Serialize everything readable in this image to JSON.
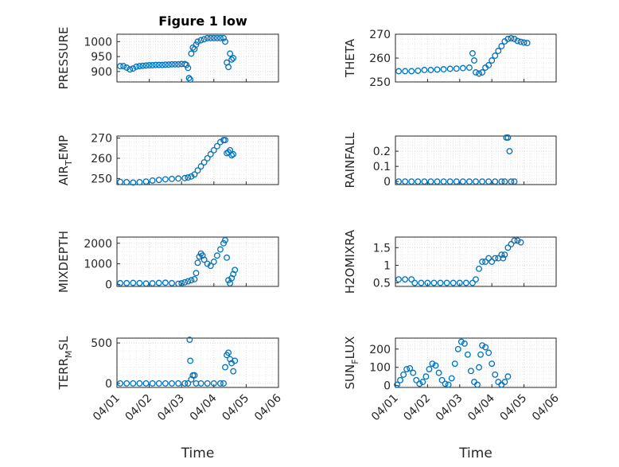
{
  "figure_title": "Figure 1 low",
  "marker_color": "#0072bd",
  "x_ticks": [
    "04/01",
    "04/02",
    "04/03",
    "04/04",
    "04/05",
    "04/06"
  ],
  "x_label": "Time",
  "chart_data": [
    {
      "type": "scatter",
      "name": "pressure",
      "ylabel": "PRESSURE",
      "yticks": [
        900,
        950,
        1000
      ],
      "ylim": [
        865,
        1025
      ],
      "xlim": [
        0,
        5
      ],
      "grid": "major+minor",
      "marker": "circle",
      "title": "Figure 1 low",
      "points": [
        [
          0.1,
          918
        ],
        [
          0.2,
          918
        ],
        [
          0.3,
          913
        ],
        [
          0.4,
          907
        ],
        [
          0.5,
          910
        ],
        [
          0.6,
          916
        ],
        [
          0.7,
          918
        ],
        [
          0.8,
          919
        ],
        [
          0.9,
          920
        ],
        [
          1.0,
          921
        ],
        [
          1.1,
          921
        ],
        [
          1.2,
          922
        ],
        [
          1.3,
          922
        ],
        [
          1.4,
          922
        ],
        [
          1.5,
          923
        ],
        [
          1.6,
          923
        ],
        [
          1.7,
          924
        ],
        [
          1.8,
          924
        ],
        [
          1.9,
          924
        ],
        [
          2.0,
          925
        ],
        [
          2.1,
          925
        ],
        [
          2.15,
          922
        ],
        [
          2.2,
          912
        ],
        [
          2.23,
          878
        ],
        [
          2.27,
          873
        ],
        [
          2.3,
          960
        ],
        [
          2.35,
          980
        ],
        [
          2.4,
          975
        ],
        [
          2.45,
          990
        ],
        [
          2.5,
          1000
        ],
        [
          2.6,
          1005
        ],
        [
          2.7,
          1008
        ],
        [
          2.8,
          1012
        ],
        [
          2.9,
          1012
        ],
        [
          3.0,
          1012
        ],
        [
          3.1,
          1012
        ],
        [
          3.2,
          1012
        ],
        [
          3.3,
          1012
        ],
        [
          3.35,
          1000
        ],
        [
          3.4,
          930
        ],
        [
          3.45,
          915
        ],
        [
          3.5,
          960
        ],
        [
          3.55,
          940
        ],
        [
          3.6,
          945
        ]
      ]
    },
    {
      "type": "scatter",
      "name": "theta",
      "ylabel": "THETA",
      "yticks": [
        250,
        260,
        270
      ],
      "ylim": [
        250,
        270
      ],
      "xlim": [
        0,
        5
      ],
      "grid": "major+minor",
      "marker": "circle",
      "points": [
        [
          0.1,
          254.5
        ],
        [
          0.3,
          254.5
        ],
        [
          0.5,
          254.5
        ],
        [
          0.7,
          254.7
        ],
        [
          0.9,
          255
        ],
        [
          1.1,
          255
        ],
        [
          1.3,
          255.2
        ],
        [
          1.5,
          255.3
        ],
        [
          1.7,
          255.5
        ],
        [
          1.9,
          255.6
        ],
        [
          2.1,
          255.8
        ],
        [
          2.3,
          256
        ],
        [
          2.4,
          262
        ],
        [
          2.45,
          259
        ],
        [
          2.5,
          254
        ],
        [
          2.6,
          253.5
        ],
        [
          2.7,
          254
        ],
        [
          2.8,
          256
        ],
        [
          2.9,
          257
        ],
        [
          3.0,
          259
        ],
        [
          3.1,
          261
        ],
        [
          3.2,
          263
        ],
        [
          3.3,
          265
        ],
        [
          3.4,
          267
        ],
        [
          3.5,
          268
        ],
        [
          3.6,
          268.3
        ],
        [
          3.7,
          268
        ],
        [
          3.8,
          267.2
        ],
        [
          3.9,
          266.8
        ],
        [
          4.0,
          266.5
        ],
        [
          4.1,
          266.3
        ]
      ]
    },
    {
      "type": "scatter",
      "name": "air_temp",
      "ylabel": "AIR_TEMP",
      "yticks": [
        250,
        260,
        270
      ],
      "ylim": [
        247,
        271
      ],
      "xlim": [
        0,
        5
      ],
      "grid": "major+minor",
      "marker": "circle",
      "points": [
        [
          0.1,
          248.3
        ],
        [
          0.3,
          248.2
        ],
        [
          0.5,
          248
        ],
        [
          0.7,
          248.2
        ],
        [
          0.9,
          248.5
        ],
        [
          1.1,
          249
        ],
        [
          1.3,
          249.3
        ],
        [
          1.5,
          249.6
        ],
        [
          1.7,
          249.8
        ],
        [
          1.9,
          250
        ],
        [
          2.1,
          250.2
        ],
        [
          2.2,
          250.5
        ],
        [
          2.3,
          251
        ],
        [
          2.4,
          252
        ],
        [
          2.5,
          254
        ],
        [
          2.6,
          256
        ],
        [
          2.7,
          258
        ],
        [
          2.8,
          260
        ],
        [
          2.9,
          262
        ],
        [
          3.0,
          264
        ],
        [
          3.1,
          266
        ],
        [
          3.2,
          268
        ],
        [
          3.3,
          269
        ],
        [
          3.35,
          269
        ],
        [
          3.4,
          262.5
        ],
        [
          3.45,
          263
        ],
        [
          3.5,
          264
        ],
        [
          3.55,
          261.5
        ],
        [
          3.6,
          262
        ]
      ]
    },
    {
      "type": "scatter",
      "name": "rainfall",
      "ylabel": "RAINFALL",
      "yticks": [
        0,
        0.1,
        0.2
      ],
      "ylim": [
        -0.02,
        0.3
      ],
      "xlim": [
        0,
        5
      ],
      "grid": "major+minor",
      "marker": "circle",
      "points": [
        [
          0.1,
          0
        ],
        [
          0.3,
          0
        ],
        [
          0.5,
          0
        ],
        [
          0.7,
          0
        ],
        [
          0.9,
          0
        ],
        [
          1.1,
          0
        ],
        [
          1.3,
          0
        ],
        [
          1.5,
          0
        ],
        [
          1.7,
          0
        ],
        [
          1.9,
          0
        ],
        [
          2.1,
          0
        ],
        [
          2.3,
          0
        ],
        [
          2.5,
          0
        ],
        [
          2.7,
          0
        ],
        [
          2.9,
          0
        ],
        [
          3.1,
          0
        ],
        [
          3.3,
          0
        ],
        [
          3.4,
          0
        ],
        [
          3.45,
          0.29
        ],
        [
          3.5,
          0.29
        ],
        [
          3.55,
          0.2
        ],
        [
          3.6,
          0
        ],
        [
          3.7,
          0
        ]
      ]
    },
    {
      "type": "scatter",
      "name": "mixdepth",
      "ylabel": "MIXDEPTH",
      "yticks": [
        0,
        1000,
        2000
      ],
      "ylim": [
        -100,
        2300
      ],
      "xlim": [
        0,
        5
      ],
      "grid": "major+minor",
      "marker": "circle",
      "points": [
        [
          0.1,
          60
        ],
        [
          0.3,
          60
        ],
        [
          0.5,
          70
        ],
        [
          0.7,
          60
        ],
        [
          0.9,
          40
        ],
        [
          1.1,
          50
        ],
        [
          1.3,
          70
        ],
        [
          1.5,
          80
        ],
        [
          1.7,
          60
        ],
        [
          1.9,
          30
        ],
        [
          2.0,
          50
        ],
        [
          2.1,
          100
        ],
        [
          2.2,
          150
        ],
        [
          2.3,
          200
        ],
        [
          2.4,
          250
        ],
        [
          2.45,
          550
        ],
        [
          2.5,
          1050
        ],
        [
          2.55,
          1350
        ],
        [
          2.6,
          1500
        ],
        [
          2.65,
          1400
        ],
        [
          2.7,
          1200
        ],
        [
          2.8,
          1000
        ],
        [
          2.9,
          900
        ],
        [
          3.0,
          1100
        ],
        [
          3.1,
          1400
        ],
        [
          3.2,
          1700
        ],
        [
          3.3,
          2000
        ],
        [
          3.35,
          2150
        ],
        [
          3.4,
          1300
        ],
        [
          3.45,
          200
        ],
        [
          3.5,
          50
        ],
        [
          3.55,
          300
        ],
        [
          3.6,
          500
        ],
        [
          3.65,
          700
        ]
      ]
    },
    {
      "type": "scatter",
      "name": "h2omixra",
      "ylabel": "H2OMIXRA",
      "yticks": [
        0.5,
        1,
        1.5
      ],
      "ylim": [
        0.4,
        1.8
      ],
      "xlim": [
        0,
        5
      ],
      "grid": "major+minor",
      "marker": "circle",
      "points": [
        [
          0.1,
          0.6
        ],
        [
          0.3,
          0.6
        ],
        [
          0.5,
          0.6
        ],
        [
          0.6,
          0.5
        ],
        [
          0.8,
          0.5
        ],
        [
          1.0,
          0.5
        ],
        [
          1.2,
          0.5
        ],
        [
          1.4,
          0.5
        ],
        [
          1.6,
          0.5
        ],
        [
          1.8,
          0.5
        ],
        [
          2.0,
          0.5
        ],
        [
          2.2,
          0.5
        ],
        [
          2.4,
          0.5
        ],
        [
          2.5,
          0.6
        ],
        [
          2.6,
          0.9
        ],
        [
          2.7,
          1.1
        ],
        [
          2.8,
          1.1
        ],
        [
          2.9,
          1.2
        ],
        [
          3.0,
          1.1
        ],
        [
          3.1,
          1.2
        ],
        [
          3.2,
          1.2
        ],
        [
          3.3,
          1.3
        ],
        [
          3.35,
          1.2
        ],
        [
          3.4,
          1.3
        ],
        [
          3.5,
          1.5
        ],
        [
          3.6,
          1.6
        ],
        [
          3.7,
          1.7
        ],
        [
          3.8,
          1.7
        ],
        [
          3.9,
          1.65
        ]
      ]
    },
    {
      "type": "scatter",
      "name": "terr_msl",
      "ylabel": "TERR_MSL",
      "yticks": [
        0,
        500
      ],
      "ylim": [
        -50,
        560
      ],
      "xlim": [
        0,
        5
      ],
      "grid": "major+minor",
      "marker": "circle",
      "points": [
        [
          0.1,
          0
        ],
        [
          0.3,
          0
        ],
        [
          0.5,
          0
        ],
        [
          0.7,
          0
        ],
        [
          0.9,
          0
        ],
        [
          1.1,
          0
        ],
        [
          1.3,
          0
        ],
        [
          1.5,
          0
        ],
        [
          1.7,
          0
        ],
        [
          1.9,
          0
        ],
        [
          2.1,
          0
        ],
        [
          2.2,
          0
        ],
        [
          2.25,
          540
        ],
        [
          2.27,
          280
        ],
        [
          2.3,
          50
        ],
        [
          2.35,
          100
        ],
        [
          2.4,
          100
        ],
        [
          2.45,
          0
        ],
        [
          2.6,
          0
        ],
        [
          2.8,
          0
        ],
        [
          3.0,
          0
        ],
        [
          3.2,
          0
        ],
        [
          3.3,
          0
        ],
        [
          3.35,
          200
        ],
        [
          3.4,
          350
        ],
        [
          3.45,
          380
        ],
        [
          3.5,
          300
        ],
        [
          3.55,
          250
        ],
        [
          3.6,
          150
        ],
        [
          3.65,
          280
        ]
      ]
    },
    {
      "type": "scatter",
      "name": "sun_flux",
      "ylabel": "SUN_FLUX",
      "yticks": [
        0,
        100,
        200
      ],
      "ylim": [
        -10,
        260
      ],
      "xlim": [
        0,
        5
      ],
      "grid": "major+minor",
      "marker": "circle",
      "points": [
        [
          0.05,
          5
        ],
        [
          0.15,
          30
        ],
        [
          0.25,
          60
        ],
        [
          0.35,
          90
        ],
        [
          0.45,
          95
        ],
        [
          0.55,
          70
        ],
        [
          0.65,
          30
        ],
        [
          0.75,
          10
        ],
        [
          0.85,
          20
        ],
        [
          0.95,
          50
        ],
        [
          1.05,
          90
        ],
        [
          1.15,
          120
        ],
        [
          1.25,
          110
        ],
        [
          1.35,
          70
        ],
        [
          1.45,
          30
        ],
        [
          1.55,
          10
        ],
        [
          1.65,
          5
        ],
        [
          1.75,
          40
        ],
        [
          1.85,
          120
        ],
        [
          1.95,
          200
        ],
        [
          2.05,
          240
        ],
        [
          2.15,
          230
        ],
        [
          2.25,
          170
        ],
        [
          2.35,
          80
        ],
        [
          2.45,
          20
        ],
        [
          2.55,
          5
        ],
        [
          2.6,
          100
        ],
        [
          2.65,
          170
        ],
        [
          2.7,
          220
        ],
        [
          2.8,
          210
        ],
        [
          2.9,
          180
        ],
        [
          3.0,
          120
        ],
        [
          3.1,
          60
        ],
        [
          3.2,
          20
        ],
        [
          3.3,
          5
        ],
        [
          3.4,
          20
        ],
        [
          3.5,
          50
        ]
      ]
    }
  ]
}
